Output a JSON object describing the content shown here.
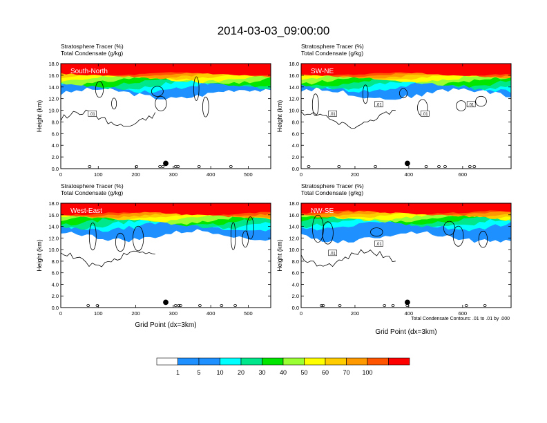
{
  "figure": {
    "title": "2014-03-03_09:00:00",
    "footnote": "Total Condensate Contours: .01 to .01 by .000",
    "colorbar": {
      "labels": [
        "1",
        "5",
        "10",
        "20",
        "30",
        "40",
        "50",
        "60",
        "70",
        "100"
      ],
      "colors": [
        "#ffffff",
        "#1e90ff",
        "#1a8cff",
        "#00ffff",
        "#00e68a",
        "#00e600",
        "#9aff33",
        "#ffff00",
        "#ffcc00",
        "#ff9900",
        "#ff5500",
        "#ff0000"
      ]
    }
  },
  "chart_data": [
    {
      "type": "heatmap",
      "title_line1": "Stratosphere Tracer   (%)",
      "title_line2": "Total Condensate   (g/kg)",
      "panel_label": "South-North",
      "ylabel": "Height (km)",
      "xlabel": "",
      "xlim": [
        0,
        560
      ],
      "ylim": [
        0,
        18
      ],
      "xticks": [
        "0",
        "100",
        "200",
        "300",
        "400",
        "500"
      ],
      "xtick_values": [
        0,
        100,
        200,
        300,
        400,
        500
      ],
      "yticks": [
        "0.0",
        "2.0",
        "4.0",
        "6.0",
        "8.0",
        "10.0",
        "12.0",
        "14.0",
        "16.0",
        "18.0"
      ],
      "contour_labels": [
        ".01"
      ],
      "tracer_top_km": 16.2,
      "tracer_bottom_km": 12.8
    },
    {
      "type": "heatmap",
      "title_line1": "Stratosphere Tracer   (%)",
      "title_line2": "Total Condensate   (g/kg)",
      "panel_label": "SW-NE",
      "ylabel": "Height (km)",
      "xlabel": "",
      "xlim": [
        0,
        780
      ],
      "ylim": [
        0,
        18
      ],
      "xticks": [
        "0",
        "200",
        "400",
        "600"
      ],
      "xtick_values": [
        0,
        200,
        400,
        600
      ],
      "yticks": [
        "0.0",
        "2.0",
        "4.0",
        "6.0",
        "8.0",
        "10.0",
        "12.0",
        "14.0",
        "16.0",
        "18.0"
      ],
      "contour_labels": [
        ".01",
        ".01",
        ".01",
        ".01"
      ],
      "tracer_top_km": 16.2,
      "tracer_bottom_km": 12.8
    },
    {
      "type": "heatmap",
      "title_line1": "Stratosphere Tracer   (%)",
      "title_line2": "Total Condensate   (g/kg)",
      "panel_label": "West-East",
      "ylabel": "Height (km)",
      "xlabel": "Grid Point (dx=3km)",
      "xlim": [
        0,
        560
      ],
      "ylim": [
        0,
        18
      ],
      "xticks": [
        "0",
        "100",
        "200",
        "300",
        "400",
        "500"
      ],
      "xtick_values": [
        0,
        100,
        200,
        300,
        400,
        500
      ],
      "yticks": [
        "0.0",
        "2.0",
        "4.0",
        "6.0",
        "8.0",
        "10.0",
        "12.0",
        "14.0",
        "16.0",
        "18.0"
      ],
      "contour_labels": [],
      "tracer_top_km": 16.2,
      "tracer_bottom_km": 12.4
    },
    {
      "type": "heatmap",
      "title_line1": "Stratosphere Tracer   (%)",
      "title_line2": "Total Condensate   (g/kg)",
      "panel_label": "NW-SE",
      "ylabel": "Height (km)",
      "xlabel": "Grid Point (dx=3km)",
      "xlim": [
        0,
        780
      ],
      "ylim": [
        0,
        18
      ],
      "xticks": [
        "0",
        "200",
        "400",
        "600"
      ],
      "xtick_values": [
        0,
        200,
        400,
        600
      ],
      "yticks": [
        "0.0",
        "2.0",
        "4.0",
        "6.0",
        "8.0",
        "10.0",
        "12.0",
        "14.0",
        "16.0",
        "18.0"
      ],
      "contour_labels": [
        ".01",
        ".01"
      ],
      "tracer_top_km": 16.4,
      "tracer_bottom_km": 12.2
    }
  ]
}
